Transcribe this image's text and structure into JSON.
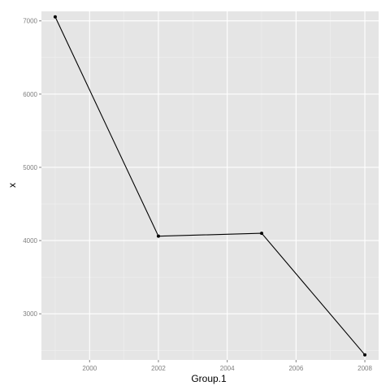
{
  "chart_data": {
    "type": "line",
    "xlabel": "Group.1",
    "ylabel": "x",
    "x": [
      1999,
      2002,
      2005,
      2008
    ],
    "y": [
      7055,
      4060,
      4100,
      2440
    ],
    "xlim": [
      1998.6,
      2008.4
    ],
    "ylim": [
      2370,
      7130
    ],
    "x_ticks": [
      2000,
      2002,
      2004,
      2006,
      2008
    ],
    "y_ticks": [
      3000,
      4000,
      5000,
      6000,
      7000
    ],
    "grid": true,
    "legend": "none",
    "colors": {
      "panel_background": "#e5e5e5",
      "grid_major": "#ffffff",
      "grid_minor": "#f2f2f2",
      "line": "#000000",
      "point": "#000000",
      "tick_label": "#7f7f7f"
    }
  }
}
